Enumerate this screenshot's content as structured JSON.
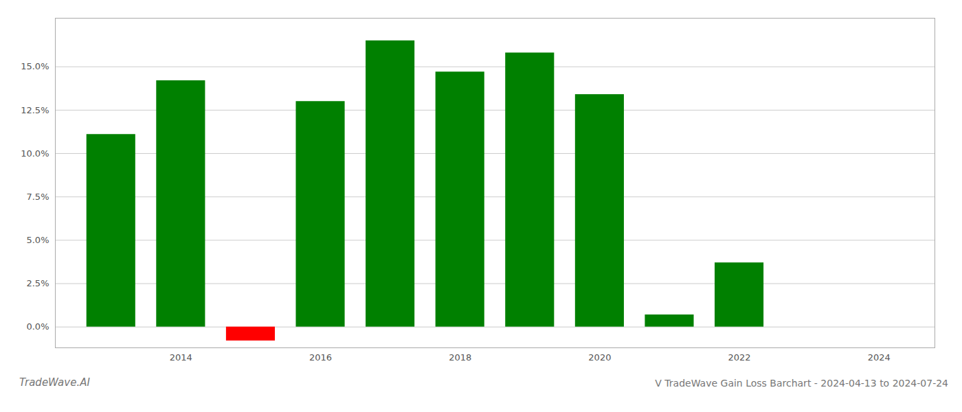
{
  "chart_data": {
    "type": "bar",
    "title": "V TradeWave Gain Loss Barchart - 2024-04-13 to 2024-07-24",
    "annotations": [
      "TradeWave.AI"
    ],
    "x": [
      2013,
      2014,
      2015,
      2016,
      2017,
      2018,
      2019,
      2020,
      2021,
      2022,
      2023
    ],
    "values": [
      0.111,
      0.142,
      -0.008,
      0.13,
      0.165,
      0.147,
      0.158,
      0.134,
      0.007,
      0.037,
      0.0
    ],
    "colors": [
      "#008000",
      "#008000",
      "#ff0000",
      "#008000",
      "#008000",
      "#008000",
      "#008000",
      "#008000",
      "#008000",
      "#008000",
      "#008000"
    ],
    "xlim": [
      2012.2,
      2024.8
    ],
    "xticks": [
      2014,
      2016,
      2018,
      2020,
      2022,
      2024
    ],
    "ylim": [
      -0.012,
      0.178
    ],
    "yticks": [
      {
        "value": 0.0,
        "label": "0.0%"
      },
      {
        "value": 0.025,
        "label": "2.5%"
      },
      {
        "value": 0.05,
        "label": "5.0%"
      },
      {
        "value": 0.075,
        "label": "7.5%"
      },
      {
        "value": 0.1,
        "label": "10.0%"
      },
      {
        "value": 0.125,
        "label": "12.5%"
      },
      {
        "value": 0.15,
        "label": "15.0%"
      }
    ],
    "grid": true
  }
}
